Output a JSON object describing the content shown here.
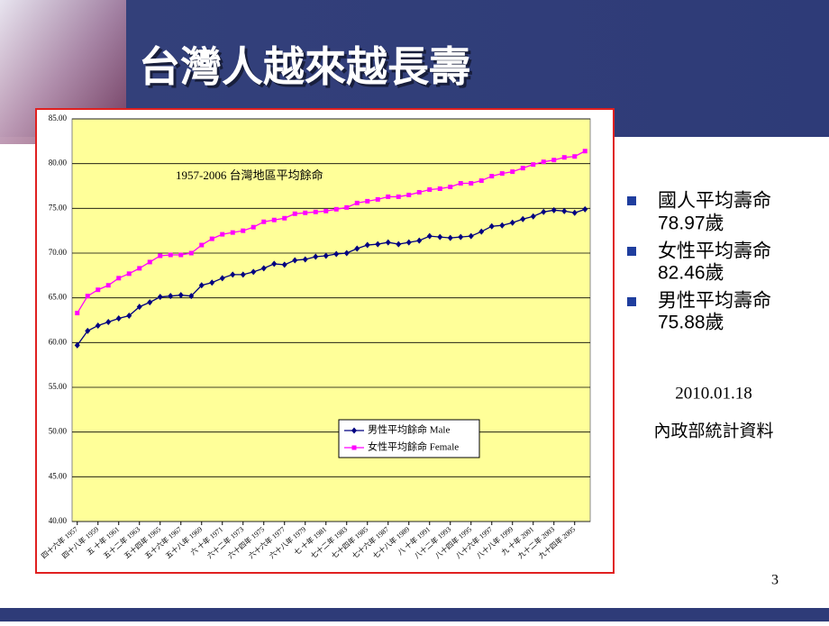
{
  "header": {
    "title": "台灣人越來越長壽"
  },
  "bullets": [
    {
      "label": "國人平均壽命",
      "value": "78.97歲"
    },
    {
      "label": "女性平均壽命",
      "value": "82.46歲"
    },
    {
      "label": "男性平均壽命",
      "value": "75.88歲"
    }
  ],
  "date": "2010.01.18",
  "source": "內政部統計資料",
  "page_number": "3",
  "chart_data": {
    "type": "line",
    "annotation": "1957-2006 台灣地區平均餘命",
    "categories": [
      "四十六年 1957",
      null,
      "四十八年 1959",
      null,
      "五 十年 1961",
      null,
      "五十二年 1963",
      null,
      "五十四年 1965",
      null,
      "五十六年 1967",
      null,
      "五十八年 1969",
      null,
      "六 十年 1971",
      null,
      "六十二年 1973",
      null,
      "六十四年 1975",
      null,
      "六十六年 1977",
      null,
      "六十八年 1979",
      null,
      "七 十年 1981",
      null,
      "七十二年 1983",
      null,
      "七十四年 1985",
      null,
      "七十六年 1987",
      null,
      "七十八年 1989",
      null,
      "八 十年 1991",
      null,
      "八十二年 1993",
      null,
      "八十四年 1995",
      null,
      "八十六年 1997",
      null,
      "八十八年 1999",
      null,
      "九 十年 2001",
      null,
      "九十二年 2003",
      null,
      "九十四年 2005",
      null
    ],
    "series": [
      {
        "name": "男性平均餘命 Male",
        "color": "#000080",
        "marker": "diamond",
        "values": [
          59.7,
          61.3,
          61.9,
          62.3,
          62.7,
          63.0,
          64.0,
          64.5,
          65.1,
          65.2,
          65.3,
          65.2,
          66.4,
          66.7,
          67.2,
          67.6,
          67.6,
          67.9,
          68.3,
          68.8,
          68.7,
          69.2,
          69.3,
          69.6,
          69.7,
          69.9,
          70.0,
          70.5,
          70.9,
          71.0,
          71.2,
          71.0,
          71.2,
          71.4,
          71.9,
          71.8,
          71.7,
          71.8,
          71.9,
          72.4,
          73.0,
          73.1,
          73.4,
          73.8,
          74.1,
          74.6,
          74.8,
          74.7,
          74.5,
          74.9
        ]
      },
      {
        "name": "女性平均餘命 Female",
        "color": "#FF00FF",
        "marker": "square",
        "values": [
          63.3,
          65.2,
          65.9,
          66.4,
          67.2,
          67.7,
          68.3,
          69.0,
          69.7,
          69.8,
          69.8,
          70.0,
          70.9,
          71.6,
          72.1,
          72.3,
          72.5,
          72.9,
          73.5,
          73.7,
          73.9,
          74.4,
          74.5,
          74.6,
          74.7,
          74.9,
          75.1,
          75.6,
          75.8,
          76.0,
          76.3,
          76.3,
          76.5,
          76.8,
          77.1,
          77.2,
          77.4,
          77.8,
          77.8,
          78.1,
          78.6,
          78.9,
          79.1,
          79.5,
          79.9,
          80.2,
          80.4,
          80.7,
          80.8,
          81.4
        ]
      }
    ],
    "ylim": [
      40,
      85
    ],
    "yticks": [
      {
        "value": 40,
        "label": "40.00"
      },
      {
        "value": 45,
        "label": "45.00"
      },
      {
        "value": 50,
        "label": "50.00"
      },
      {
        "value": 55,
        "label": "55.00"
      },
      {
        "value": 60,
        "label": "60.00"
      },
      {
        "value": 65,
        "label": "65.00"
      },
      {
        "value": 70,
        "label": "70.00"
      },
      {
        "value": 75,
        "label": "75.00"
      },
      {
        "value": 80,
        "label": "80.00"
      },
      {
        "value": 85,
        "label": "85.00"
      }
    ],
    "grid": true,
    "plot_background": "#FFFF99"
  }
}
